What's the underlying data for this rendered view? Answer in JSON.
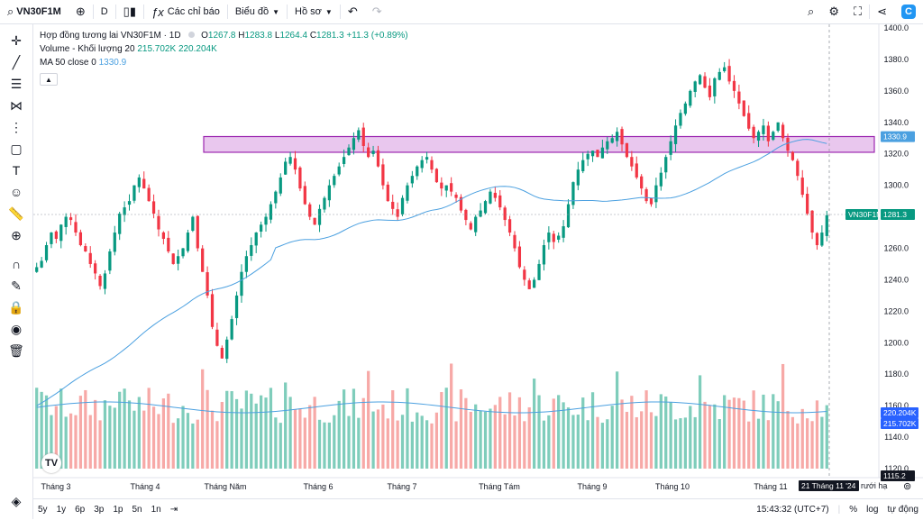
{
  "toolbar": {
    "symbol": "VN30F1M",
    "interval": "D",
    "indicators_label": "Các chỉ báo",
    "chart_label": "Biểu đồ",
    "profile_label": "Hồ sơ"
  },
  "legend": {
    "title": "Hợp đồng tương lai VN30F1M · 1D",
    "o_label": "O",
    "o": "1267.8",
    "h_label": "H",
    "h": "1283.8",
    "l_label": "L",
    "l": "1264.4",
    "c_label": "C",
    "c": "1281.3",
    "change": "+11.3 (+0.89%)",
    "volume_label": "Volume - Khối lượng 20",
    "volume_a": "215.702K",
    "volume_b": "220.204K",
    "ma_label": "MA 50 close 0",
    "ma_value": "1330.9"
  },
  "price_axis": {
    "ticks": [
      "1400.0",
      "1380.0",
      "1360.0",
      "1340.0",
      "1320.0",
      "1300.0",
      "1280.0",
      "1260.0",
      "1240.0",
      "1220.0",
      "1200.0",
      "1180.0",
      "1160.0",
      "1140.0",
      "1120.0"
    ],
    "ma_tag": "1330.9",
    "price_tag_symbol": "VN30F1M",
    "price_tag_value": "1281.3",
    "vol_tag_a": "220.204K",
    "vol_tag_b": "215.702K",
    "bottom_tag": "1115.2"
  },
  "time_axis": {
    "labels": [
      "Tháng 3",
      "Tháng 4",
      "Tháng Năm",
      "Tháng 6",
      "Tháng 7",
      "Tháng Tám",
      "Tháng 9",
      "Tháng 10",
      "Tháng 11"
    ],
    "crosshair_date": "21 Tháng 11 '24",
    "overflow_text": "rưới hạ"
  },
  "bottom_bar": {
    "ranges": [
      "5y",
      "1y",
      "6p",
      "3p",
      "1p",
      "5n",
      "1n"
    ],
    "time": "15:43:32 (UTC+7)",
    "percent": "%",
    "log": "log",
    "auto": "tự động"
  },
  "colors": {
    "up": "#089981",
    "down": "#f23645",
    "vol_up": "#7fcdbb",
    "vol_down": "#f7a9a7",
    "ma": "#4ba0e0",
    "zone_fill": "#e9c7ee",
    "zone_stroke": "#9c27b0"
  },
  "chart_data": {
    "type": "candlestick",
    "symbol": "VN30F1M",
    "interval": "1D",
    "ylim": [
      1115,
      1405
    ],
    "months": [
      "Tháng 3",
      "Tháng 4",
      "Tháng Năm",
      "Tháng 6",
      "Tháng 7",
      "Tháng Tám",
      "Tháng 9",
      "Tháng 10",
      "Tháng 11"
    ],
    "close_series": [
      1248,
      1252,
      1262,
      1270,
      1266,
      1275,
      1280,
      1278,
      1270,
      1262,
      1258,
      1250,
      1244,
      1236,
      1244,
      1258,
      1270,
      1282,
      1286,
      1290,
      1300,
      1305,
      1298,
      1290,
      1282,
      1272,
      1266,
      1258,
      1250,
      1255,
      1260,
      1270,
      1280,
      1260,
      1245,
      1230,
      1210,
      1198,
      1190,
      1202,
      1215,
      1230,
      1245,
      1255,
      1262,
      1270,
      1275,
      1280,
      1288,
      1296,
      1305,
      1315,
      1318,
      1310,
      1298,
      1288,
      1280,
      1275,
      1285,
      1292,
      1300,
      1306,
      1312,
      1318,
      1324,
      1330,
      1335,
      1325,
      1318,
      1322,
      1312,
      1300,
      1290,
      1285,
      1280,
      1292,
      1300,
      1306,
      1312,
      1316,
      1318,
      1310,
      1302,
      1298,
      1300,
      1296,
      1292,
      1284,
      1278,
      1272,
      1280,
      1284,
      1290,
      1296,
      1292,
      1286,
      1278,
      1270,
      1260,
      1248,
      1240,
      1234,
      1240,
      1250,
      1262,
      1270,
      1264,
      1268,
      1274,
      1288,
      1302,
      1310,
      1316,
      1320,
      1322,
      1318,
      1324,
      1328,
      1330,
      1334,
      1326,
      1318,
      1312,
      1305,
      1298,
      1290,
      1288,
      1300,
      1308,
      1318,
      1328,
      1338,
      1346,
      1352,
      1360,
      1366,
      1370,
      1362,
      1356,
      1368,
      1372,
      1375,
      1366,
      1360,
      1352,
      1344,
      1336,
      1330,
      1334,
      1338,
      1328,
      1334,
      1340,
      1330,
      1322,
      1316,
      1306,
      1294,
      1282,
      1270,
      1262,
      1270,
      1281
    ],
    "last_ohlc": {
      "open": 1267.8,
      "high": 1283.8,
      "low": 1264.4,
      "close": 1281.3
    },
    "ma50_last": 1330.9,
    "zone": {
      "from": 1321,
      "to": 1331
    },
    "volume_last": [
      220204,
      215702
    ]
  }
}
